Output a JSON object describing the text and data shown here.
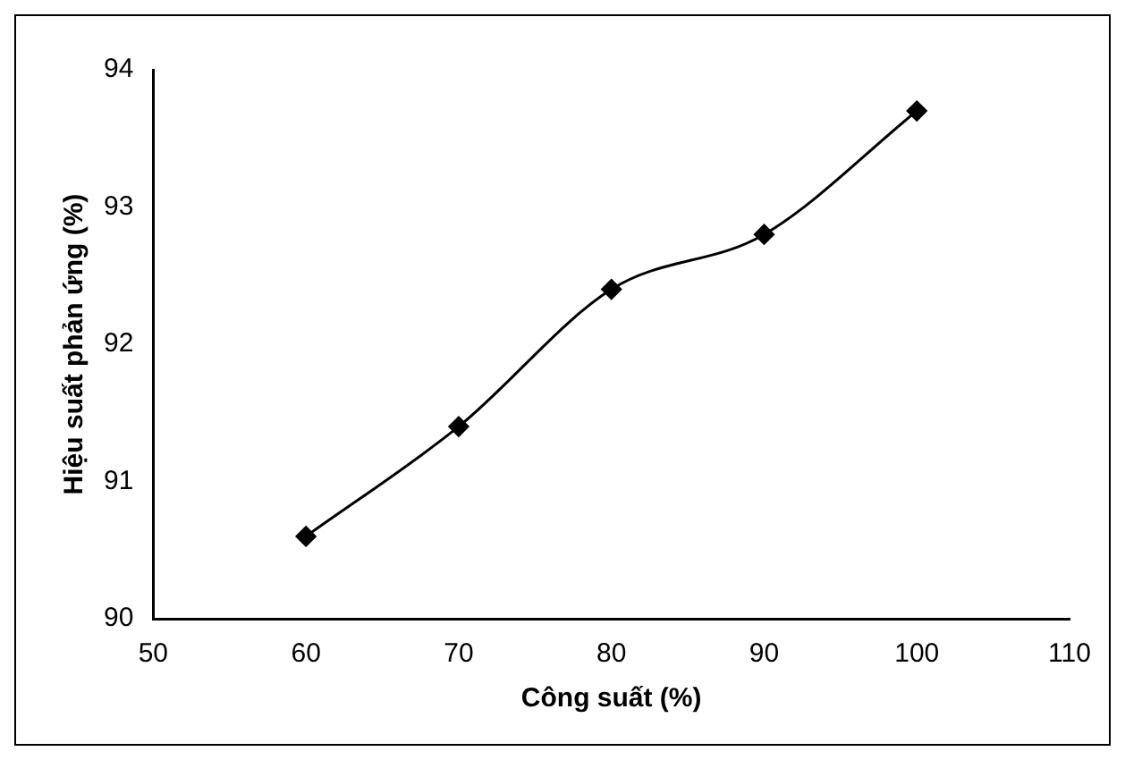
{
  "chart_data": {
    "type": "line",
    "xlabel": "Công suất (%)",
    "ylabel": "Hiệu suất phản ứng (%)",
    "x": [
      60,
      70,
      80,
      90,
      100
    ],
    "series": [
      {
        "color": "#000000",
        "values": [
          90.6,
          91.4,
          92.4,
          92.8,
          93.7
        ]
      }
    ],
    "xlim": [
      50,
      110
    ],
    "xticks": [
      50,
      60,
      70,
      80,
      90,
      100,
      110
    ],
    "ylim": [
      90,
      94
    ],
    "yticks": [
      90,
      91,
      92,
      93,
      94
    ],
    "grid": false,
    "legend": false,
    "marker": "diamond",
    "line_style": "solid"
  }
}
